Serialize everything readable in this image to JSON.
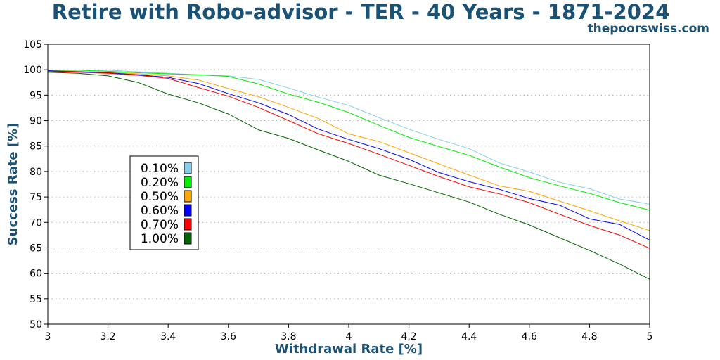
{
  "chart_data": {
    "type": "line",
    "title": "Retire with Robo-advisor - TER - 40 Years - 1871-2024",
    "subtitle": "thepoorswiss.com",
    "xlabel": "Withdrawal Rate [%]",
    "ylabel": "Success Rate [%]",
    "xlim": [
      3,
      5
    ],
    "ylim": [
      50,
      105
    ],
    "x_ticks": [
      "3",
      "3.2",
      "3.4",
      "3.6",
      "3.8",
      "4",
      "4.2",
      "4.4",
      "4.6",
      "4.8",
      "5"
    ],
    "y_ticks": [
      "50",
      "55",
      "60",
      "65",
      "70",
      "75",
      "80",
      "85",
      "90",
      "95",
      "100",
      "105"
    ],
    "grid": "horizontal dotted",
    "legend_position": "center-left",
    "x": [
      3.0,
      3.1,
      3.2,
      3.3,
      3.4,
      3.5,
      3.6,
      3.7,
      3.8,
      3.9,
      4.0,
      4.1,
      4.2,
      4.3,
      4.4,
      4.5,
      4.6,
      4.7,
      4.8,
      4.9,
      5.0
    ],
    "series": [
      {
        "name": "0.10%",
        "color": "#87ceeb",
        "values": [
          99.9,
          99.9,
          99.9,
          99.6,
          99.3,
          99.0,
          98.8,
          98.1,
          96.4,
          94.6,
          93.0,
          90.6,
          88.3,
          86.3,
          84.5,
          81.7,
          79.9,
          77.9,
          76.6,
          74.6,
          73.6
        ]
      },
      {
        "name": "0.20%",
        "color": "#00ee00",
        "values": [
          99.9,
          99.9,
          99.7,
          99.4,
          99.2,
          99.0,
          98.7,
          97.2,
          95.2,
          93.6,
          91.6,
          89.1,
          86.7,
          84.9,
          83.2,
          80.9,
          78.8,
          77.2,
          75.7,
          73.9,
          72.4
        ]
      },
      {
        "name": "0.50%",
        "color": "#ffa500",
        "values": [
          99.8,
          99.7,
          99.5,
          99.2,
          98.8,
          98.0,
          96.3,
          94.7,
          92.6,
          90.4,
          87.4,
          85.9,
          83.7,
          81.5,
          79.3,
          77.2,
          76.1,
          74.2,
          72.3,
          70.3,
          68.4
        ]
      },
      {
        "name": "0.60%",
        "color": "#0000ff",
        "values": [
          99.8,
          99.6,
          99.4,
          99.0,
          98.5,
          97.3,
          95.3,
          93.5,
          91.2,
          88.3,
          86.3,
          84.5,
          82.4,
          79.8,
          78.0,
          76.5,
          74.7,
          73.4,
          70.7,
          69.6,
          66.5
        ]
      },
      {
        "name": "0.70%",
        "color": "#ff0000",
        "values": [
          99.7,
          99.5,
          99.3,
          98.9,
          98.3,
          96.5,
          94.8,
          92.6,
          90.0,
          87.4,
          85.5,
          83.4,
          81.2,
          79.0,
          77.0,
          75.6,
          73.9,
          71.6,
          69.4,
          67.5,
          64.9
        ]
      },
      {
        "name": "1.00%",
        "color": "#006400",
        "values": [
          99.5,
          99.3,
          98.8,
          97.5,
          95.2,
          93.5,
          91.3,
          88.2,
          86.5,
          84.2,
          82.0,
          79.3,
          77.6,
          75.8,
          74.0,
          71.6,
          69.5,
          67.0,
          64.5,
          61.8,
          58.8
        ]
      }
    ]
  }
}
